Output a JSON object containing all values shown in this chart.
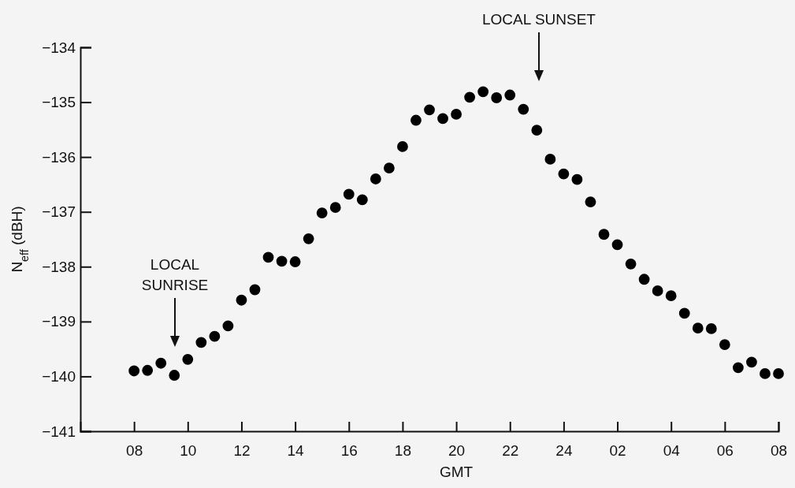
{
  "chart_data": {
    "type": "scatter",
    "xlabel": "GMT",
    "ylabel": "N$_{eff}$ (dBH)",
    "categories": [
      "08",
      null,
      null,
      null,
      "10",
      null,
      null,
      null,
      "12",
      null,
      null,
      null,
      "14",
      null,
      null,
      null,
      "16",
      null,
      null,
      null,
      "18",
      null,
      null,
      null,
      "20",
      null,
      null,
      null,
      "22",
      null,
      null,
      null,
      "24",
      null,
      null,
      null,
      "02",
      null,
      null,
      null,
      "04",
      null,
      null,
      null,
      "06",
      null,
      null,
      null,
      "08"
    ],
    "series": [
      {
        "color": "#000000",
        "values": [
          -139.9,
          -139.89,
          -139.76,
          -139.98,
          -139.69,
          -139.38,
          -139.27,
          -139.08,
          -138.61,
          -138.42,
          -137.83,
          -137.9,
          -137.91,
          -137.49,
          -137.02,
          -136.92,
          -136.68,
          -136.78,
          -136.4,
          -136.2,
          -135.81,
          -135.33,
          -135.14,
          -135.3,
          -135.22,
          -134.91,
          -134.81,
          -134.92,
          -134.87,
          -135.13,
          -135.51,
          -136.04,
          -136.31,
          -136.41,
          -136.82,
          -137.41,
          -137.6,
          -137.95,
          -138.23,
          -138.44,
          -138.53,
          -138.85,
          -139.12,
          -139.13,
          -139.42,
          -139.84,
          -139.74,
          -139.95,
          -139.95
        ]
      }
    ],
    "ylim": [
      -141,
      -134
    ],
    "yticks": [
      -141,
      -140,
      -139,
      -138,
      -137,
      -136,
      -135,
      -134
    ],
    "marker": "circle",
    "grid": false,
    "annotations": [
      "LOCAL\nSUNRISE",
      "LOCAL SUNSET"
    ]
  }
}
